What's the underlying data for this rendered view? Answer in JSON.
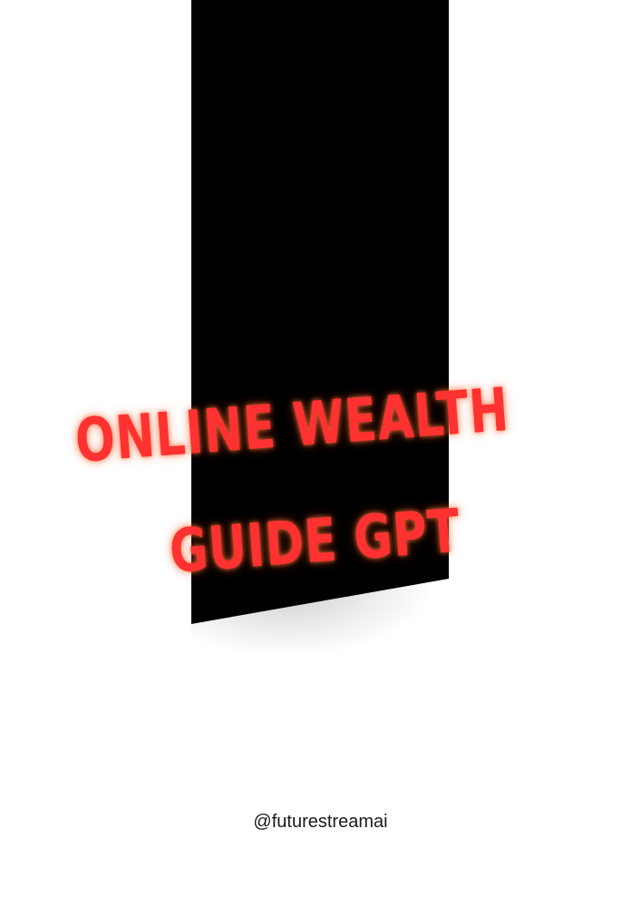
{
  "title": {
    "line1": "ONLINE WEALTH",
    "line2": "GUIDE GPT"
  },
  "handle": "@futurestreamai",
  "colors": {
    "background": "#ffffff",
    "banner": "#000000",
    "title": "#ff3131",
    "handle": "#1a1a1a"
  }
}
